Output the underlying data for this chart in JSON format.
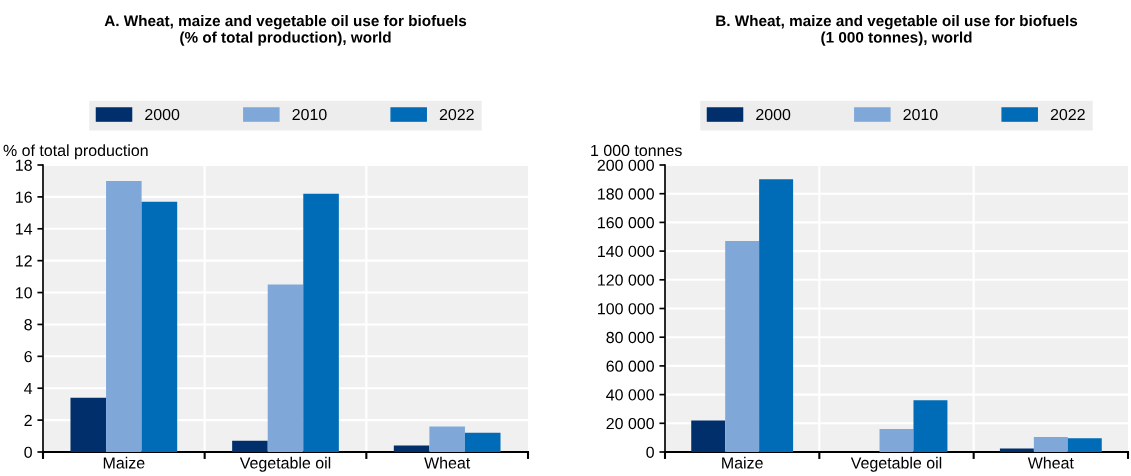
{
  "chart_data": [
    {
      "type": "bar",
      "title": "A. Wheat, maize and vegetable oil use for biofuels\n(% of total production), world",
      "ylabel": "% of total production",
      "categories": [
        "Maize",
        "Vegetable oil",
        "Wheat"
      ],
      "series": [
        {
          "name": "2000",
          "color": "#002f6c",
          "values": [
            3.4,
            0.7,
            0.4
          ]
        },
        {
          "name": "2010",
          "color": "#7fa8d9",
          "values": [
            17.0,
            10.5,
            1.6
          ]
        },
        {
          "name": "2022",
          "color": "#006bb6",
          "values": [
            15.7,
            16.2,
            1.2
          ]
        }
      ],
      "ylim": [
        0,
        18
      ],
      "yticks": [
        0,
        2,
        4,
        6,
        8,
        10,
        12,
        14,
        16,
        18
      ],
      "grid": "y",
      "legend": "top"
    },
    {
      "type": "bar",
      "title": "B. Wheat, maize and vegetable oil use for biofuels\n(1 000 tonnes), world",
      "ylabel": "1 000 tonnes",
      "categories": [
        "Maize",
        "Vegetable oil",
        "Wheat"
      ],
      "series": [
        {
          "name": "2000",
          "color": "#002f6c",
          "values": [
            22000,
            0,
            2500
          ]
        },
        {
          "name": "2010",
          "color": "#7fa8d9",
          "values": [
            147000,
            16000,
            10500
          ]
        },
        {
          "name": "2022",
          "color": "#006bb6",
          "values": [
            190000,
            36000,
            9500
          ]
        }
      ],
      "ylim": [
        0,
        200000
      ],
      "yticks": [
        0,
        {
          "value": 20000,
          "label": "20 000"
        },
        {
          "value": 40000,
          "label": "40 000"
        },
        {
          "value": 60000,
          "label": "60 000"
        },
        {
          "value": 80000,
          "label": "80 000"
        },
        {
          "value": 100000,
          "label": "100 000"
        },
        {
          "value": 120000,
          "label": "120 000"
        },
        {
          "value": 140000,
          "label": "140 000"
        },
        {
          "value": 160000,
          "label": "160 000"
        },
        {
          "value": 180000,
          "label": "180 000"
        },
        {
          "value": 200000,
          "label": "200 000"
        }
      ],
      "grid": "y",
      "legend": "top"
    }
  ]
}
